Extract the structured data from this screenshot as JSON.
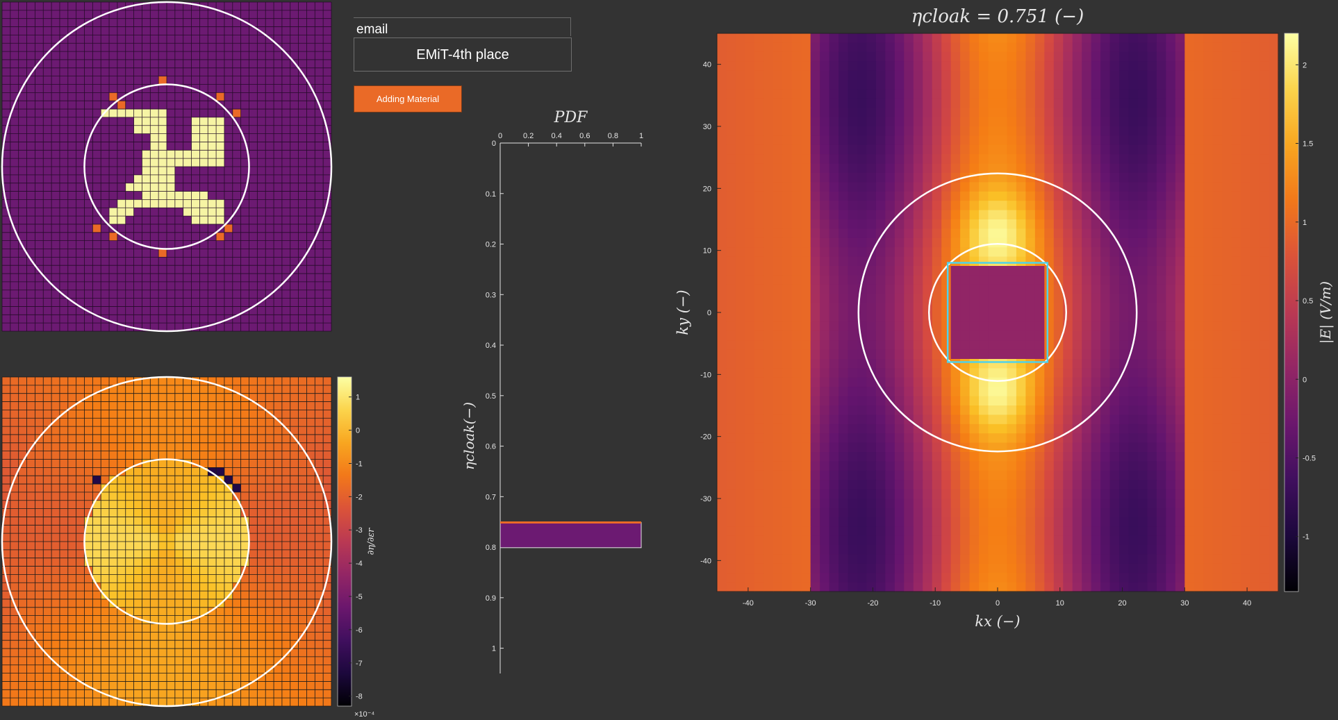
{
  "controls": {
    "email_label": "email",
    "entry_value": "EMiT-4th place",
    "add_button": "Adding Material"
  },
  "colors": {
    "background": "#333333",
    "design_background": "#6c1a72",
    "design_material": "#f6f4a4",
    "design_candidate": "#ea6a27",
    "button": "#ea6a27",
    "cloak_box": "#4fd2ea",
    "circles": "#ffffff"
  },
  "design_map": {
    "grid": 40,
    "inner_circle_radius_cells": 10,
    "outer_circle_radius_cells": 20,
    "material_cells": [
      [
        12,
        13
      ],
      [
        13,
        13
      ],
      [
        14,
        13
      ],
      [
        15,
        13
      ],
      [
        16,
        13
      ],
      [
        17,
        13
      ],
      [
        18,
        13
      ],
      [
        19,
        13
      ],
      [
        16,
        14
      ],
      [
        17,
        14
      ],
      [
        18,
        14
      ],
      [
        19,
        14
      ],
      [
        23,
        14
      ],
      [
        24,
        14
      ],
      [
        25,
        14
      ],
      [
        26,
        14
      ],
      [
        16,
        15
      ],
      [
        17,
        15
      ],
      [
        18,
        15
      ],
      [
        19,
        15
      ],
      [
        23,
        15
      ],
      [
        24,
        15
      ],
      [
        25,
        15
      ],
      [
        26,
        15
      ],
      [
        18,
        16
      ],
      [
        19,
        16
      ],
      [
        23,
        16
      ],
      [
        24,
        16
      ],
      [
        25,
        16
      ],
      [
        26,
        16
      ],
      [
        18,
        17
      ],
      [
        19,
        17
      ],
      [
        23,
        17
      ],
      [
        24,
        17
      ],
      [
        25,
        17
      ],
      [
        26,
        17
      ],
      [
        17,
        18
      ],
      [
        18,
        18
      ],
      [
        19,
        18
      ],
      [
        20,
        18
      ],
      [
        21,
        18
      ],
      [
        22,
        18
      ],
      [
        23,
        18
      ],
      [
        24,
        18
      ],
      [
        25,
        18
      ],
      [
        26,
        18
      ],
      [
        17,
        19
      ],
      [
        18,
        19
      ],
      [
        19,
        19
      ],
      [
        20,
        19
      ],
      [
        21,
        19
      ],
      [
        22,
        19
      ],
      [
        23,
        19
      ],
      [
        24,
        19
      ],
      [
        25,
        19
      ],
      [
        26,
        19
      ],
      [
        17,
        20
      ],
      [
        18,
        20
      ],
      [
        19,
        20
      ],
      [
        20,
        20
      ],
      [
        16,
        21
      ],
      [
        17,
        21
      ],
      [
        18,
        21
      ],
      [
        19,
        21
      ],
      [
        20,
        21
      ],
      [
        15,
        22
      ],
      [
        16,
        22
      ],
      [
        17,
        22
      ],
      [
        18,
        22
      ],
      [
        19,
        22
      ],
      [
        20,
        22
      ],
      [
        17,
        23
      ],
      [
        18,
        23
      ],
      [
        19,
        23
      ],
      [
        20,
        23
      ],
      [
        21,
        23
      ],
      [
        22,
        23
      ],
      [
        23,
        23
      ],
      [
        24,
        23
      ],
      [
        14,
        24
      ],
      [
        15,
        24
      ],
      [
        16,
        24
      ],
      [
        17,
        24
      ],
      [
        18,
        24
      ],
      [
        19,
        24
      ],
      [
        20,
        24
      ],
      [
        21,
        24
      ],
      [
        22,
        24
      ],
      [
        23,
        24
      ],
      [
        24,
        24
      ],
      [
        25,
        24
      ],
      [
        26,
        24
      ],
      [
        13,
        25
      ],
      [
        14,
        25
      ],
      [
        15,
        25
      ],
      [
        22,
        25
      ],
      [
        23,
        25
      ],
      [
        24,
        25
      ],
      [
        25,
        25
      ],
      [
        26,
        25
      ],
      [
        13,
        26
      ],
      [
        14,
        26
      ],
      [
        23,
        26
      ],
      [
        24,
        26
      ],
      [
        25,
        26
      ],
      [
        26,
        26
      ]
    ],
    "candidate_cells": [
      [
        19,
        9
      ],
      [
        13,
        11
      ],
      [
        26,
        11
      ],
      [
        14,
        12
      ],
      [
        28,
        13
      ],
      [
        11,
        27
      ],
      [
        27,
        27
      ],
      [
        13,
        28
      ],
      [
        26,
        28
      ],
      [
        19,
        30
      ]
    ]
  },
  "sensitivity_map": {
    "colorbar_ticks": [
      "1",
      "0",
      "-1",
      "-2",
      "-3",
      "-4",
      "-5",
      "-6",
      "-7",
      "-8"
    ],
    "colorbar_min": -8.3,
    "colorbar_max": 1.6,
    "colorbar_label": "∂η/∂εr",
    "scale_note": "×10⁻⁴",
    "dark_cells": [
      [
        25,
        11
      ],
      [
        26,
        11
      ],
      [
        27,
        12
      ],
      [
        28,
        13
      ],
      [
        11,
        12
      ]
    ]
  },
  "chart_data": [
    {
      "type": "bar",
      "title": "PDF",
      "xlabel": "",
      "ylabel": "ηcloak(−)",
      "x_ticks": [
        "0",
        "0.2",
        "0.4",
        "0.6",
        "0.8",
        "1"
      ],
      "y_ticks": [
        "0",
        "0.1",
        "0.2",
        "0.3",
        "0.4",
        "0.5",
        "0.6",
        "0.7",
        "0.8",
        "0.9",
        "1"
      ],
      "xlim": [
        0,
        1
      ],
      "ylim": [
        0,
        1.05
      ],
      "bars": [
        {
          "from": 0.751,
          "to": 0.801,
          "value": 1,
          "color": "#6c1a72",
          "edge": "#ea6a27"
        }
      ]
    },
    {
      "type": "heatmap",
      "title": "ηcloak = 0.751 (−)",
      "xlabel": "kx (−)",
      "ylabel": "ky (−)",
      "x_ticks": [
        -40,
        -30,
        -20,
        -10,
        0,
        10,
        20,
        30,
        40
      ],
      "y_ticks": [
        40,
        30,
        20,
        10,
        0,
        -10,
        -20,
        -30,
        -40
      ],
      "xlim": [
        -45,
        45
      ],
      "ylim": [
        -45,
        45
      ],
      "colorbar_label": "|E| (V/m)",
      "colorbar_ticks": [
        "2",
        "1.5",
        "1",
        "0.5",
        "0",
        "-0.5",
        "-1"
      ],
      "colorbar_min": -1.35,
      "colorbar_max": 2.2,
      "circles_radius": [
        11,
        22.3
      ],
      "cloak_box": [
        -8,
        8,
        -8,
        8
      ]
    }
  ]
}
